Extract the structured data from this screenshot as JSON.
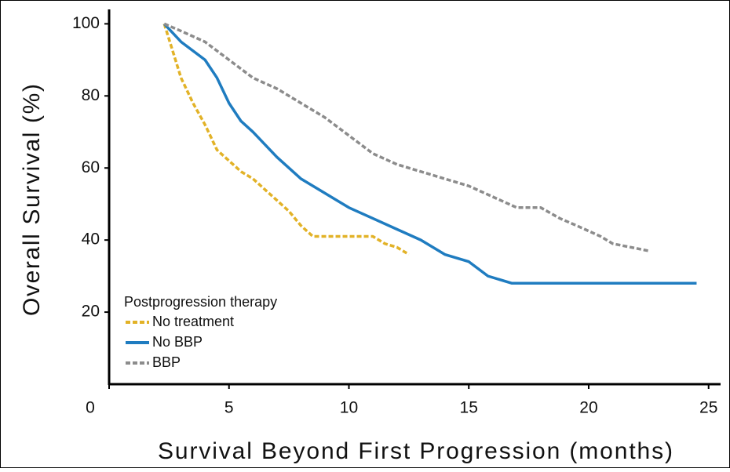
{
  "chart_data": {
    "type": "line",
    "xlabel": "Survival Beyond First Progression (months)",
    "ylabel": "Overall Survival (%)",
    "xlim": [
      0,
      25.5
    ],
    "ylim": [
      0,
      104
    ],
    "xticks": [
      0,
      5,
      10,
      15,
      20,
      25
    ],
    "yticks": [
      20,
      40,
      60,
      80,
      100
    ],
    "legend_title": "Postprogression therapy",
    "legend_position": "lower left",
    "series": [
      {
        "name": "No treatment",
        "color": "#e2b227",
        "dash": true,
        "x": [
          2.3,
          3,
          3.5,
          4,
          4.5,
          5,
          5.5,
          6,
          6.5,
          7,
          7.5,
          8,
          8.5,
          9,
          10,
          11,
          11.5,
          12,
          12.5
        ],
        "values": [
          100,
          85,
          78,
          72,
          65,
          62,
          59,
          57,
          54,
          51,
          48,
          44,
          41,
          41,
          41,
          41,
          39,
          38,
          36
        ]
      },
      {
        "name": "No BBP",
        "color": "#1f7cc0",
        "dash": false,
        "x": [
          2.3,
          3,
          4,
          4.5,
          5,
          5.5,
          6,
          7,
          8,
          9,
          10,
          11,
          12,
          13,
          14,
          15,
          15.8,
          16.8,
          24.5
        ],
        "values": [
          100,
          95,
          90,
          85,
          78,
          73,
          70,
          63,
          57,
          53,
          49,
          46,
          43,
          40,
          36,
          34,
          30,
          28,
          28
        ]
      },
      {
        "name": "BBP",
        "color": "#8c8c8c",
        "dash": true,
        "x": [
          2.3,
          3,
          4,
          5,
          6,
          7,
          8,
          9,
          10,
          11,
          12,
          13,
          14,
          15,
          16,
          17,
          18,
          18.8,
          19.5,
          20.5,
          21,
          22.5
        ],
        "values": [
          100,
          98,
          95,
          90,
          85,
          82,
          78,
          74,
          69,
          64,
          61,
          59,
          57,
          55,
          52,
          49,
          49,
          46,
          44,
          41,
          39,
          37
        ]
      }
    ]
  }
}
